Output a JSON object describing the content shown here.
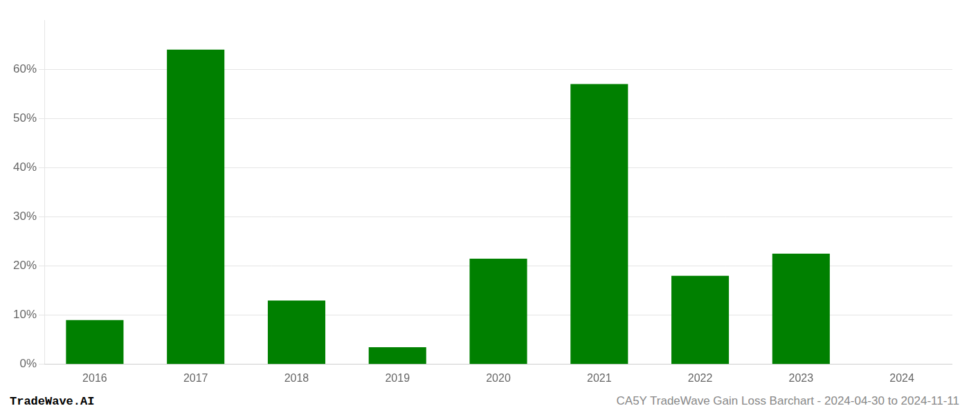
{
  "chart_data": {
    "type": "bar",
    "categories": [
      "2016",
      "2017",
      "2018",
      "2019",
      "2020",
      "2021",
      "2022",
      "2023",
      "2024"
    ],
    "values": [
      0.09,
      0.64,
      0.13,
      0.035,
      0.215,
      0.57,
      0.18,
      0.225,
      0.0
    ],
    "color": "#008000",
    "ylim": [
      0.0,
      0.7
    ],
    "yticks": [
      {
        "value": 0.0,
        "label": "0%"
      },
      {
        "value": 0.1,
        "label": "10%"
      },
      {
        "value": 0.2,
        "label": "20%"
      },
      {
        "value": 0.3,
        "label": "30%"
      },
      {
        "value": 0.4,
        "label": "40%"
      },
      {
        "value": 0.5,
        "label": "50%"
      },
      {
        "value": 0.6,
        "label": "60%"
      }
    ],
    "grid": true,
    "annotations": [
      "TradeWave.AI",
      "CA5Y TradeWave Gain Loss Barchart - 2024-04-30 to 2024-11-11"
    ]
  }
}
